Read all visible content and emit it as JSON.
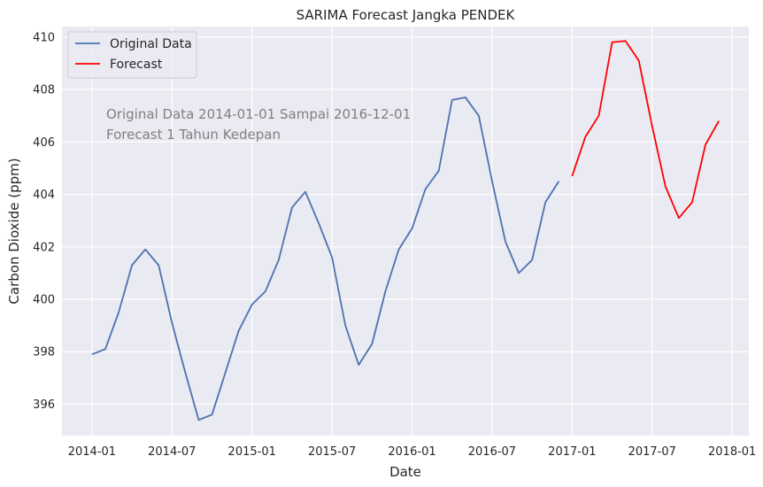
{
  "chart_data": {
    "type": "line",
    "title": "SARIMA Forecast Jangka PENDEK",
    "xlabel": "Date",
    "ylabel": "Carbon Dioxide (ppm)",
    "ylim": [
      394.8,
      410.4
    ],
    "yticks": [
      396,
      398,
      400,
      402,
      404,
      406,
      408,
      410
    ],
    "xticks": [
      "2014-01",
      "2014-07",
      "2015-01",
      "2015-07",
      "2016-01",
      "2016-07",
      "2017-01",
      "2017-07",
      "2018-01"
    ],
    "grid": true,
    "legend_position": "top-left",
    "annotations": [
      "Original Data 2014-01-01 Sampai 2016-12-01",
      "Forecast 1 Tahun Kedepan"
    ],
    "series": [
      {
        "name": "Original Data",
        "color": "#4c72b0",
        "x": [
          "2014-01",
          "2014-02",
          "2014-03",
          "2014-04",
          "2014-05",
          "2014-06",
          "2014-07",
          "2014-08",
          "2014-09",
          "2014-10",
          "2014-11",
          "2014-12",
          "2015-01",
          "2015-02",
          "2015-03",
          "2015-04",
          "2015-05",
          "2015-06",
          "2015-07",
          "2015-08",
          "2015-09",
          "2015-10",
          "2015-11",
          "2015-12",
          "2016-01",
          "2016-02",
          "2016-03",
          "2016-04",
          "2016-05",
          "2016-06",
          "2016-07",
          "2016-08",
          "2016-09",
          "2016-10",
          "2016-11",
          "2016-12"
        ],
        "values": [
          397.9,
          398.1,
          399.5,
          401.3,
          401.9,
          401.3,
          399.1,
          397.2,
          395.4,
          395.6,
          397.2,
          398.8,
          399.8,
          400.3,
          401.5,
          403.5,
          404.1,
          402.9,
          401.6,
          399.0,
          397.5,
          398.3,
          400.3,
          401.9,
          402.7,
          404.2,
          404.9,
          407.6,
          407.7,
          407.0,
          404.5,
          402.2,
          401.0,
          401.5,
          403.7,
          404.5
        ]
      },
      {
        "name": "Forecast",
        "color": "#ff0000",
        "x": [
          "2017-01",
          "2017-02",
          "2017-03",
          "2017-04",
          "2017-05",
          "2017-06",
          "2017-07",
          "2017-08",
          "2017-09",
          "2017-10",
          "2017-11",
          "2017-12"
        ],
        "values": [
          404.7,
          406.2,
          407.0,
          409.8,
          409.85,
          409.1,
          406.6,
          404.3,
          403.1,
          403.7,
          405.9,
          406.8
        ]
      }
    ]
  }
}
